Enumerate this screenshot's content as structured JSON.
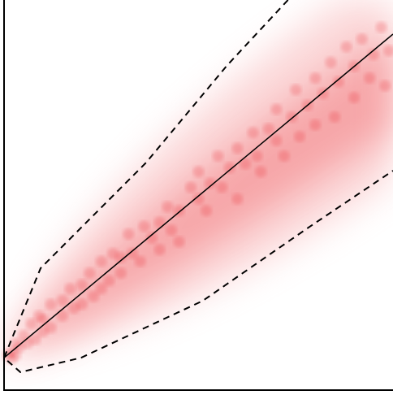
{
  "chart_data": {
    "type": "scatter",
    "xlim": [
      0,
      1
    ],
    "ylim": [
      0,
      1
    ],
    "grid": false,
    "series": [
      {
        "style": "points",
        "color": "#e8202a",
        "x": [
          0.02,
          0.02,
          0.03,
          0.01,
          0.04,
          0.03,
          0.05,
          0.06,
          0.07,
          0.08,
          0.09,
          0.1,
          0.1,
          0.12,
          0.12,
          0.15,
          0.15,
          0.17,
          0.18,
          0.2,
          0.2,
          0.22,
          0.23,
          0.25,
          0.25,
          0.27,
          0.28,
          0.3,
          0.3,
          0.32,
          0.33,
          0.35,
          0.36,
          0.38,
          0.4,
          0.4,
          0.42,
          0.43,
          0.45,
          0.45,
          0.48,
          0.5,
          0.5,
          0.52,
          0.53,
          0.55,
          0.56,
          0.58,
          0.6,
          0.6,
          0.62,
          0.64,
          0.65,
          0.66,
          0.68,
          0.7,
          0.7,
          0.72,
          0.74,
          0.75,
          0.76,
          0.78,
          0.8,
          0.8,
          0.82,
          0.84,
          0.85,
          0.86,
          0.88,
          0.9,
          0.9,
          0.92,
          0.94,
          0.95,
          0.97,
          0.98,
          0.99
        ],
        "y": [
          0.1,
          0.08,
          0.12,
          0.09,
          0.11,
          0.09,
          0.14,
          0.12,
          0.17,
          0.13,
          0.19,
          0.15,
          0.18,
          0.22,
          0.16,
          0.23,
          0.19,
          0.26,
          0.21,
          0.27,
          0.22,
          0.3,
          0.24,
          0.26,
          0.33,
          0.28,
          0.35,
          0.34,
          0.3,
          0.4,
          0.35,
          0.33,
          0.42,
          0.39,
          0.43,
          0.36,
          0.47,
          0.41,
          0.46,
          0.38,
          0.52,
          0.49,
          0.56,
          0.46,
          0.53,
          0.6,
          0.52,
          0.57,
          0.49,
          0.62,
          0.58,
          0.66,
          0.6,
          0.56,
          0.67,
          0.64,
          0.72,
          0.6,
          0.7,
          0.77,
          0.65,
          0.73,
          0.68,
          0.8,
          0.76,
          0.84,
          0.7,
          0.79,
          0.88,
          0.75,
          0.83,
          0.9,
          0.8,
          0.86,
          0.93,
          0.78,
          0.87
        ]
      },
      {
        "style": "solid",
        "color": "#000000",
        "x": [
          0,
          1
        ],
        "y": [
          0.083,
          0.9125
        ]
      },
      {
        "style": "dashed",
        "color": "#000000",
        "x": [
          0.73,
          0.574,
          0.365,
          0.094,
          0,
          0.042,
          0.198,
          0.511,
          0.783,
          1
        ],
        "y": [
          1,
          0.833,
          0.583,
          0.3125,
          0.083,
          0.046,
          0.083,
          0.229,
          0.417,
          0.5625
        ]
      }
    ]
  }
}
